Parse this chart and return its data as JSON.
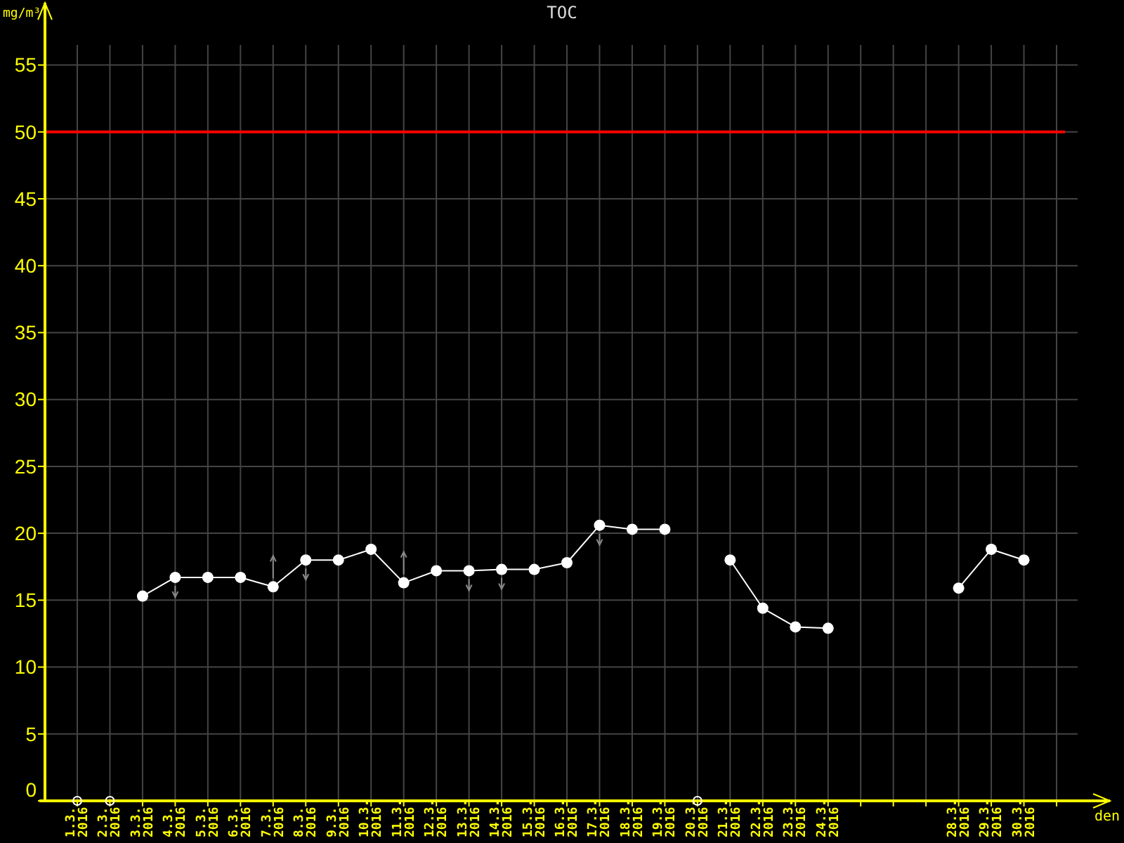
{
  "chart_data": {
    "type": "line",
    "title": "TOC",
    "xlabel": "den",
    "ylabel": "mg/m³",
    "categories": [
      "1.3. 2016",
      "2.3. 2016",
      "3.3. 2016",
      "4.3. 2016",
      "5.3. 2016",
      "6.3. 2016",
      "7.3. 2016",
      "8.3. 2016",
      "9.3. 2016",
      "10.3. 2016",
      "11.3. 2016",
      "12.3. 2016",
      "13.3. 2016",
      "14.3. 2016",
      "15.3. 2016",
      "16.3. 2016",
      "17.3. 2016",
      "18.3. 2016",
      "19.3. 2016",
      "20.3. 2016",
      "21.3. 2016",
      "22.3. 2016",
      "23.3. 2016",
      "24.3. 2016",
      null,
      null,
      null,
      "28.3. 2016",
      "29.3. 2016",
      "30.3. 2016",
      null
    ],
    "series": [
      {
        "color": "#ffffff",
        "values": [
          null,
          null,
          15.3,
          16.7,
          16.7,
          16.7,
          16.0,
          18.0,
          18.0,
          18.8,
          16.3,
          17.2,
          17.2,
          17.3,
          17.3,
          17.8,
          20.6,
          20.3,
          20.3,
          null,
          18.0,
          14.4,
          13.0,
          12.9,
          null,
          null,
          null,
          15.9,
          18.8,
          18.0,
          null
        ]
      }
    ],
    "ylim": [
      0,
      56.5
    ],
    "yticks": [
      0,
      5,
      10,
      15,
      20,
      25,
      30,
      35,
      40,
      45,
      50,
      55
    ],
    "grid": true,
    "marker": "circle",
    "line_style": "solid",
    "ref_lines": [
      {
        "axis": "y",
        "value": 50,
        "color": "#ff0000"
      }
    ]
  }
}
